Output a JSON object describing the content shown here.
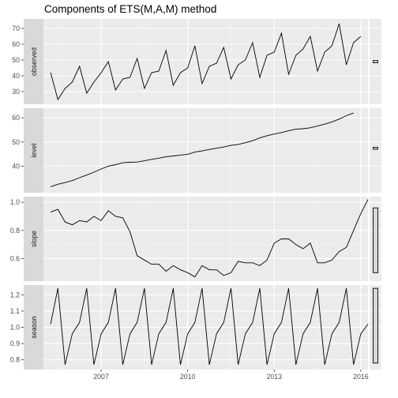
{
  "chart_data": {
    "type": "line",
    "title": "Components of ETS(M,A,M) method",
    "xlabel": "",
    "x_range": [
      2005.0,
      2016.25
    ],
    "x_ticks": [
      2007,
      2010,
      2013,
      2016
    ],
    "x_tick_labels": [
      "2007",
      "2010",
      "2013",
      "2016"
    ],
    "grid": true,
    "x_start": 2005.25,
    "x_step": 0.25,
    "panels": [
      {
        "name": "observed",
        "ylim": [
          22,
          76
        ],
        "y_ticks": [
          30,
          40,
          50,
          60,
          70
        ],
        "y_tick_labels": [
          "30",
          "40",
          "50",
          "60",
          "70"
        ],
        "values": [
          42,
          25,
          32,
          36,
          46,
          29,
          36,
          42,
          49,
          31,
          38,
          39,
          51,
          32,
          42,
          43,
          56,
          34,
          42,
          45,
          59,
          35,
          46,
          48,
          58,
          38,
          47,
          50,
          61,
          39,
          53,
          55,
          67,
          41,
          53,
          57,
          65,
          43,
          55,
          59,
          73,
          47,
          61,
          65
        ],
        "bar_ci": [
          48.3,
          49.7
        ]
      },
      {
        "name": "level",
        "ylim": [
          29,
          64
        ],
        "y_ticks": [
          40,
          50,
          60
        ],
        "y_tick_labels": [
          "40",
          "50",
          "60"
        ],
        "values": [
          31.5,
          32.5,
          33.2,
          34,
          35.2,
          36.3,
          37.5,
          38.8,
          40.0,
          40.6,
          41.4,
          41.6,
          41.7,
          42.2,
          42.8,
          43.3,
          43.9,
          44.2,
          44.6,
          44.9,
          45.8,
          46.3,
          46.9,
          47.4,
          47.9,
          48.6,
          49.0,
          49.7,
          50.5,
          51.7,
          52.6,
          53.3,
          53.9,
          54.7,
          55.3,
          55.5,
          55.9,
          56.6,
          57.4,
          58.3,
          59.5,
          60.9,
          62.0
        ],
        "bar_ci": [
          47.0,
          47.8
        ]
      },
      {
        "name": "slope",
        "ylim": [
          0.44,
          1.04
        ],
        "y_ticks": [
          0.6,
          0.8,
          1.0
        ],
        "y_tick_labels": [
          "0.6",
          "0.8",
          "1.0"
        ],
        "values": [
          0.93,
          0.95,
          0.86,
          0.84,
          0.87,
          0.86,
          0.9,
          0.87,
          0.94,
          0.9,
          0.89,
          0.79,
          0.62,
          0.59,
          0.56,
          0.56,
          0.51,
          0.55,
          0.52,
          0.5,
          0.47,
          0.55,
          0.52,
          0.52,
          0.48,
          0.5,
          0.58,
          0.57,
          0.57,
          0.55,
          0.59,
          0.71,
          0.74,
          0.74,
          0.7,
          0.67,
          0.71,
          0.57,
          0.57,
          0.59,
          0.65,
          0.68,
          0.8,
          0.92,
          1.02
        ],
        "bar_ci": [
          0.5,
          0.96
        ]
      },
      {
        "name": "season",
        "ylim": [
          0.74,
          1.26
        ],
        "y_ticks": [
          0.8,
          0.9,
          1.0,
          1.1,
          1.2
        ],
        "y_tick_labels": [
          "0.8",
          "0.9",
          "1.0",
          "1.1",
          "1.2"
        ],
        "values": [
          1.02,
          1.24,
          0.77,
          0.96,
          1.03,
          1.24,
          0.77,
          0.96,
          1.03,
          1.24,
          0.77,
          0.96,
          1.03,
          1.24,
          0.77,
          0.96,
          1.03,
          1.24,
          0.77,
          0.96,
          1.03,
          1.24,
          0.77,
          0.96,
          1.03,
          1.24,
          0.77,
          0.96,
          1.03,
          1.24,
          0.77,
          0.96,
          1.03,
          1.24,
          0.77,
          0.96,
          1.03,
          1.24,
          0.77,
          0.96,
          1.03,
          1.24,
          0.77,
          0.96,
          1.02
        ],
        "bar_ci": [
          0.78,
          1.24
        ]
      }
    ],
    "colors": {
      "panel_bg": "#ebebeb",
      "strip_bg": "#d9d9d9",
      "grid_major": "#ffffff",
      "grid_minor": "#f5f5f5",
      "line": "#000000",
      "bar_fill": "#d9d9d9"
    }
  }
}
